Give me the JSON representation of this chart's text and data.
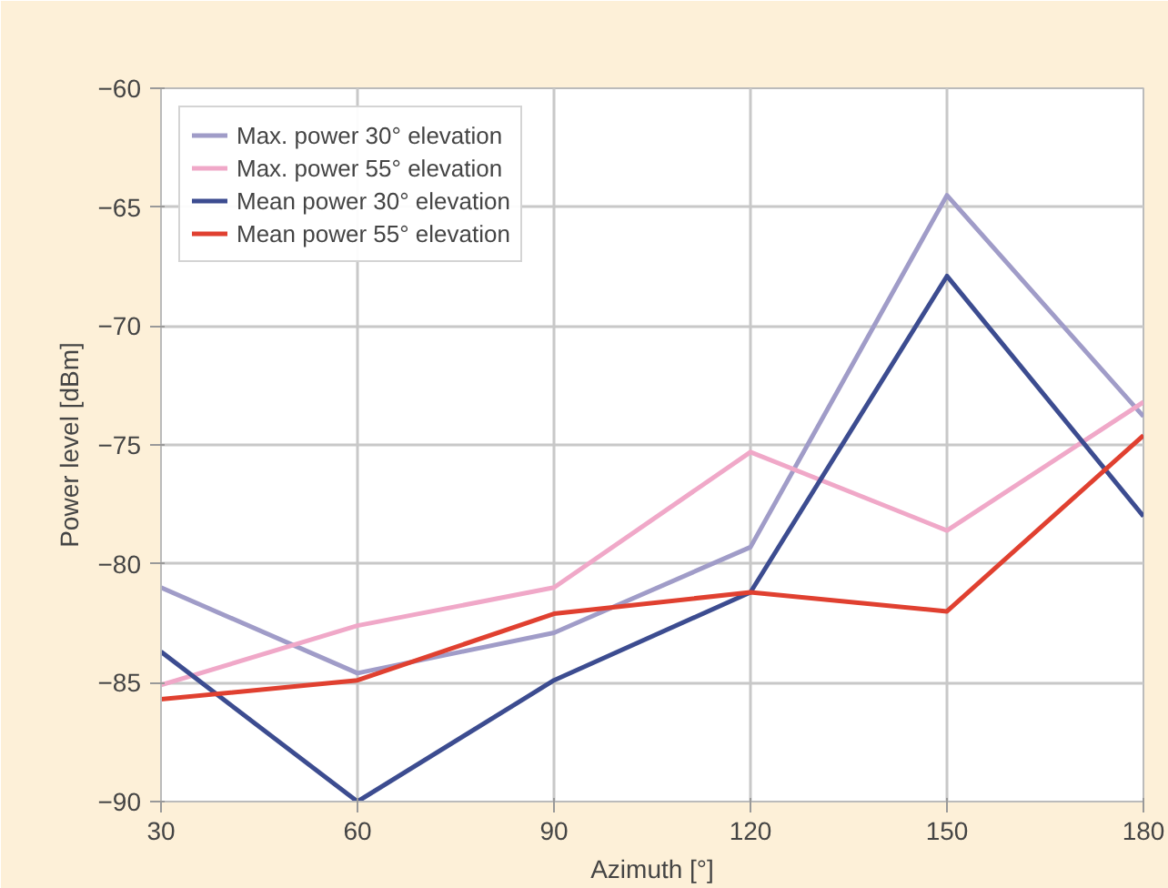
{
  "chart_data": {
    "type": "line",
    "xlabel": "Azimuth [°]",
    "ylabel": "Power level [dBm]",
    "x": [
      30,
      60,
      90,
      120,
      150,
      180
    ],
    "series": [
      {
        "name": "Max. power 30° elevation",
        "color": "#a09cc8",
        "values": [
          -81.0,
          -84.6,
          -82.9,
          -79.3,
          -64.5,
          -73.8
        ]
      },
      {
        "name": "Max. power 55° elevation",
        "color": "#f0a8c8",
        "values": [
          -85.1,
          -82.6,
          -81.0,
          -75.3,
          -78.6,
          -73.2
        ]
      },
      {
        "name": "Mean power 30° elevation",
        "color": "#3c4c90",
        "values": [
          -83.7,
          -90.0,
          -84.9,
          -81.2,
          -67.9,
          -78.0
        ]
      },
      {
        "name": "Mean power 55° elevation",
        "color": "#e04030",
        "values": [
          -85.7,
          -84.9,
          -82.1,
          -81.2,
          -82.0,
          -74.6
        ]
      }
    ],
    "xlim": [
      30,
      180
    ],
    "xticks": [
      30,
      60,
      90,
      120,
      150,
      180
    ],
    "ylim": [
      -90,
      -60
    ],
    "yticks": [
      -90,
      -85,
      -80,
      -75,
      -70,
      -65,
      -60
    ],
    "grid": true,
    "legend": "top left",
    "line_style": "solid"
  }
}
